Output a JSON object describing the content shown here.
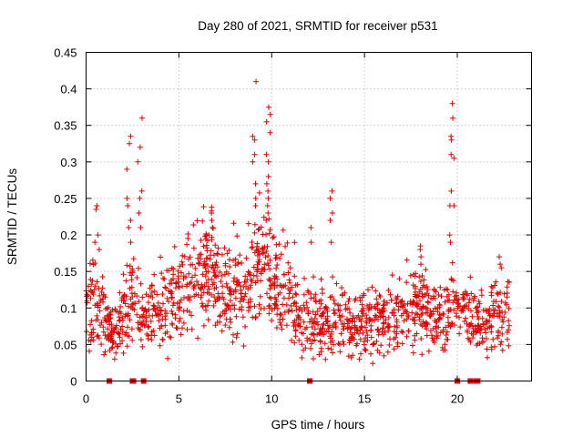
{
  "chart_data": {
    "type": "scatter",
    "title": "Day 280 of 2021, SRMTID for receiver p531",
    "xlabel": "GPS time / hours",
    "ylabel": "SRMTID / TECUs",
    "xlim": [
      0,
      24
    ],
    "ylim": [
      0,
      0.45
    ],
    "xticks": [
      0,
      5,
      10,
      15,
      20
    ],
    "xtick_labels": [
      "0",
      "5",
      "10",
      "15",
      "20"
    ],
    "yticks": [
      0,
      0.05,
      0.1,
      0.15,
      0.2,
      0.25,
      0.3,
      0.35,
      0.4,
      0.45
    ],
    "ytick_labels": [
      "0",
      "0.05",
      "0.1",
      "0.15",
      "0.2",
      "0.25",
      "0.3",
      "0.35",
      "0.4",
      "0.45"
    ],
    "grid": true,
    "marker": "plus",
    "series_color": "#e00000",
    "profile": [
      [
        0.0,
        0.09
      ],
      [
        0.5,
        0.12
      ],
      [
        1.0,
        0.09
      ],
      [
        1.5,
        0.06
      ],
      [
        2.0,
        0.09
      ],
      [
        2.5,
        0.12
      ],
      [
        3.0,
        0.08
      ],
      [
        3.5,
        0.09
      ],
      [
        4.0,
        0.1
      ],
      [
        4.5,
        0.11
      ],
      [
        5.0,
        0.12
      ],
      [
        5.5,
        0.13
      ],
      [
        6.0,
        0.14
      ],
      [
        6.5,
        0.15
      ],
      [
        7.0,
        0.14
      ],
      [
        7.5,
        0.12
      ],
      [
        8.0,
        0.13
      ],
      [
        8.5,
        0.12
      ],
      [
        9.0,
        0.16
      ],
      [
        9.5,
        0.17
      ],
      [
        10.0,
        0.15
      ],
      [
        10.5,
        0.12
      ],
      [
        11.0,
        0.11
      ],
      [
        11.5,
        0.1
      ],
      [
        12.0,
        0.09
      ],
      [
        12.5,
        0.09
      ],
      [
        13.0,
        0.08
      ],
      [
        13.5,
        0.09
      ],
      [
        14.0,
        0.08
      ],
      [
        14.5,
        0.08
      ],
      [
        15.0,
        0.08
      ],
      [
        15.5,
        0.08
      ],
      [
        16.0,
        0.08
      ],
      [
        16.5,
        0.09
      ],
      [
        17.0,
        0.09
      ],
      [
        17.5,
        0.1
      ],
      [
        18.0,
        0.11
      ],
      [
        18.5,
        0.1
      ],
      [
        19.0,
        0.09
      ],
      [
        19.5,
        0.09
      ],
      [
        20.0,
        0.1
      ],
      [
        20.5,
        0.09
      ],
      [
        21.0,
        0.08
      ],
      [
        21.5,
        0.07
      ],
      [
        22.0,
        0.09
      ],
      [
        22.5,
        0.1
      ],
      [
        22.8,
        0.1
      ]
    ],
    "peaks": [
      {
        "x": 0.6,
        "values": [
          0.24,
          0.235,
          0.2,
          0.19,
          0.18
        ]
      },
      {
        "x": 2.3,
        "values": [
          0.335,
          0.325,
          0.29,
          0.25,
          0.24,
          0.22,
          0.21,
          0.19
        ]
      },
      {
        "x": 2.9,
        "values": [
          0.36,
          0.32,
          0.3,
          0.26,
          0.25,
          0.23,
          0.21
        ]
      },
      {
        "x": 6.7,
        "values": [
          0.238,
          0.23,
          0.22,
          0.21,
          0.2
        ]
      },
      {
        "x": 9.1,
        "values": [
          0.41,
          0.335,
          0.33,
          0.31,
          0.3,
          0.27,
          0.25,
          0.24
        ]
      },
      {
        "x": 9.8,
        "values": [
          0.375,
          0.365,
          0.355,
          0.34,
          0.31,
          0.3,
          0.28,
          0.27,
          0.26,
          0.25,
          0.24,
          0.23,
          0.22
        ]
      },
      {
        "x": 12.1,
        "values": [
          0.21,
          0.19
        ]
      },
      {
        "x": 13.15,
        "values": [
          0.26,
          0.25,
          0.23,
          0.22,
          0.19
        ]
      },
      {
        "x": 18.1,
        "values": [
          0.185,
          0.18,
          0.17
        ]
      },
      {
        "x": 19.7,
        "values": [
          0.38,
          0.36,
          0.335,
          0.33,
          0.31,
          0.305,
          0.26,
          0.24,
          0.24,
          0.2,
          0.19
        ]
      },
      {
        "x": 22.3,
        "values": [
          0.17,
          0.16,
          0.155
        ]
      }
    ],
    "zero_markers": [
      1.25,
      2.5,
      2.55,
      3.1,
      12.05,
      20.0,
      20.7,
      21.0,
      21.1
    ]
  }
}
